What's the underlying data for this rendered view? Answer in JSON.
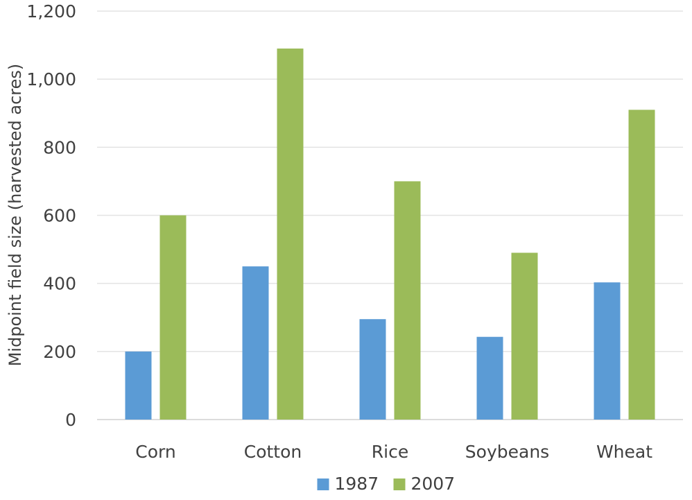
{
  "chart_data": {
    "type": "bar",
    "title": "",
    "xlabel": "",
    "ylabel": "Midpoint field size (harvested acres)",
    "categories": [
      "Corn",
      "Cotton",
      "Rice",
      "Soybeans",
      "Wheat"
    ],
    "series": [
      {
        "name": "1987",
        "values": [
          200,
          450,
          295,
          243,
          403
        ],
        "color": "#5b9bd5"
      },
      {
        "name": "2007",
        "values": [
          600,
          1090,
          700,
          490,
          910
        ],
        "color": "#9bbb59"
      }
    ],
    "ylim": [
      0,
      1200
    ],
    "yticks": [
      0,
      200,
      400,
      600,
      800,
      1000,
      1200
    ],
    "ytick_labels": [
      "0",
      "200",
      "400",
      "600",
      "800",
      "1,000",
      "1,200"
    ],
    "grid": true,
    "legend_position": "bottom-center"
  }
}
